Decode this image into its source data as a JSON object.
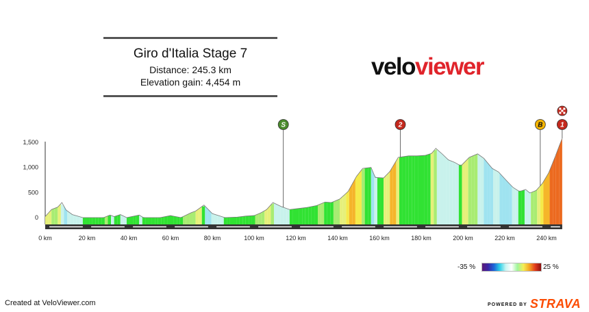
{
  "header": {
    "title": "Giro d'Italia Stage 7",
    "distance": "Distance: 245.3 km",
    "elevation": "Elevation gain: 4,454 m"
  },
  "logo": {
    "part1": "velo",
    "part2": "viewer"
  },
  "legend": {
    "min": "-35 %",
    "max": "25 %"
  },
  "footer": {
    "created": "Created at VeloViewer.com",
    "powered_by": "POWERED BY",
    "strava": "STRAVA"
  },
  "colors": {
    "accent": "#e0242b",
    "strava": "#fc4c02",
    "sprint_marker": "#4a8b2c",
    "climb_marker": "#c4281d",
    "bonus_marker": "#f4b400"
  },
  "chart_data": {
    "type": "area",
    "xlabel": "",
    "ylabel": "",
    "xlim": [
      0,
      250
    ],
    "ylim": [
      -100,
      1700
    ],
    "x_ticks": [
      "0 km",
      "20 km",
      "40 km",
      "60 km",
      "80 km",
      "100 km",
      "120 km",
      "140 km",
      "160 km",
      "180 km",
      "200 km",
      "220 km",
      "240 km"
    ],
    "y_ticks": [
      "0",
      "500",
      "1,000",
      "1,500"
    ],
    "profile": [
      [
        0,
        20
      ],
      [
        3,
        160
      ],
      [
        6,
        210
      ],
      [
        8,
        300
      ],
      [
        10,
        150
      ],
      [
        13,
        60
      ],
      [
        18,
        0
      ],
      [
        28,
        0
      ],
      [
        31,
        50
      ],
      [
        33,
        20
      ],
      [
        36,
        60
      ],
      [
        39,
        0
      ],
      [
        45,
        50
      ],
      [
        47,
        0
      ],
      [
        55,
        0
      ],
      [
        60,
        40
      ],
      [
        65,
        0
      ],
      [
        70,
        100
      ],
      [
        72,
        130
      ],
      [
        76,
        250
      ],
      [
        80,
        80
      ],
      [
        86,
        0
      ],
      [
        92,
        10
      ],
      [
        96,
        30
      ],
      [
        100,
        40
      ],
      [
        103,
        90
      ],
      [
        106,
        160
      ],
      [
        109,
        300
      ],
      [
        113,
        220
      ],
      [
        117,
        160
      ],
      [
        121,
        180
      ],
      [
        125,
        200
      ],
      [
        130,
        240
      ],
      [
        134,
        310
      ],
      [
        137,
        300
      ],
      [
        141,
        370
      ],
      [
        145,
        520
      ],
      [
        149,
        820
      ],
      [
        152,
        980
      ],
      [
        156,
        1000
      ],
      [
        158,
        800
      ],
      [
        162,
        790
      ],
      [
        165,
        920
      ],
      [
        169,
        1200
      ],
      [
        174,
        1230
      ],
      [
        178,
        1230
      ],
      [
        182,
        1240
      ],
      [
        185,
        1280
      ],
      [
        187,
        1380
      ],
      [
        190,
        1270
      ],
      [
        193,
        1150
      ],
      [
        196,
        1100
      ],
      [
        199,
        1030
      ],
      [
        203,
        1200
      ],
      [
        207,
        1270
      ],
      [
        210,
        1180
      ],
      [
        214,
        980
      ],
      [
        217,
        910
      ],
      [
        221,
        730
      ],
      [
        224,
        600
      ],
      [
        227,
        520
      ],
      [
        230,
        560
      ],
      [
        232,
        490
      ],
      [
        235,
        540
      ],
      [
        238,
        680
      ],
      [
        241,
        890
      ],
      [
        244,
        1200
      ],
      [
        246,
        1420
      ],
      [
        247.5,
        1580
      ]
    ],
    "markers": [
      {
        "label": "S",
        "km": 114,
        "type": "sprint"
      },
      {
        "label": "2",
        "km": 170,
        "type": "climb"
      },
      {
        "label": "B",
        "km": 237,
        "type": "bonus"
      },
      {
        "label": "1",
        "km": 247.5,
        "type": "climb"
      }
    ],
    "legend_range_pct": [
      -35,
      25
    ]
  }
}
